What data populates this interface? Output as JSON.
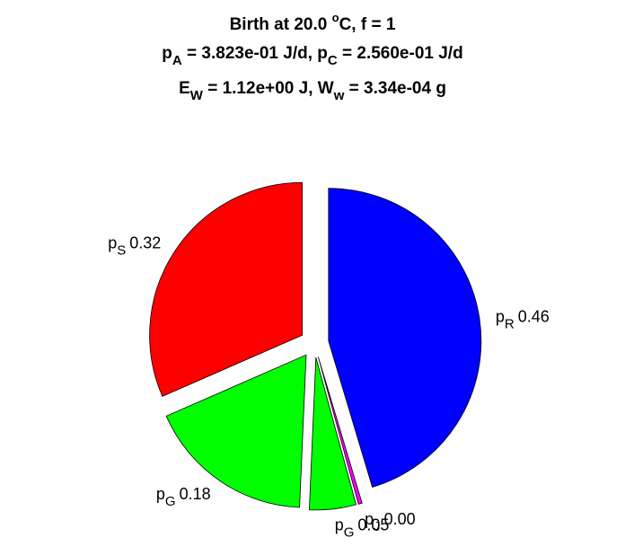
{
  "chart_data": {
    "type": "pie",
    "title": [
      [
        "Birth at 20.0 ",
        "o",
        "C, f = 1"
      ],
      [
        "p",
        "A",
        " = 3.823e-01 J/d, p",
        "C",
        " = 2.560e-01 J/d"
      ],
      [
        "E",
        "W",
        " = 1.12e+00 J, W",
        "w",
        " = 3.34e-04 g"
      ]
    ],
    "categories": [
      {
        "base": "p",
        "sub": "S"
      },
      {
        "base": "p",
        "sub": "G"
      },
      {
        "base": "p",
        "sub": "G"
      },
      {
        "base": "p",
        "sub": "J"
      },
      {
        "base": "p",
        "sub": "R"
      }
    ],
    "values": [
      0.32,
      0.18,
      0.05,
      0.004,
      0.46
    ],
    "value_labels": [
      "0.32",
      "0.18",
      "0.05",
      "0.00",
      "0.46"
    ],
    "colors": [
      "#ff0000",
      "#00ff00",
      "#00ff00",
      "#ff00ff",
      "#0000ff"
    ]
  }
}
